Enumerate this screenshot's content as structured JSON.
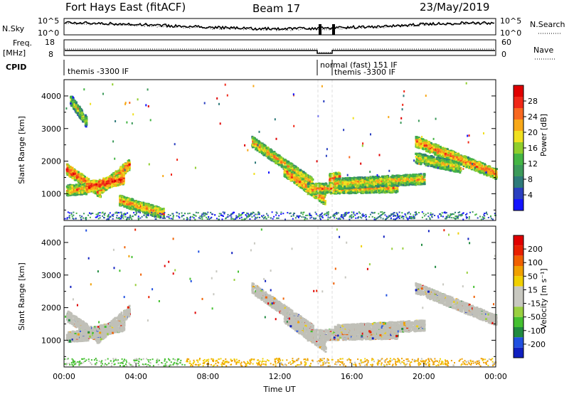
{
  "header": {
    "site": "Fort Hays East (fitACF)",
    "beam": "Beam 17",
    "date": "23/May/2019"
  },
  "strips": {
    "nsky_label": "N.Sky",
    "nsky_ticks": [
      "10^5",
      "10^0"
    ],
    "nsearch_label": "N.Search",
    "nsearch_ticks": [
      "10^5",
      "10^0"
    ],
    "freq_label_1": "Freq.",
    "freq_label_2": "[MHz]",
    "freq_ticks": [
      "18",
      "8"
    ],
    "nave_label": "Nave",
    "nave_ticks": [
      "60",
      "0"
    ],
    "cpid_label": "CPID",
    "cpid_segments": [
      "themis -3300 IF",
      "normal (fast) 151 IF",
      "themis -3300 IF"
    ]
  },
  "chart_data": [
    {
      "type": "heatmap",
      "panel": "power",
      "ylabel": "Slant Range [km]",
      "ylim": [
        180,
        4500
      ],
      "yticks": [
        "4000",
        "3000",
        "2000",
        "1000"
      ],
      "xlim_hours": [
        0,
        24
      ],
      "colorbar_label": "Power [dB]",
      "colorbar_ticks": [
        "28",
        "24",
        "20",
        "16",
        "12",
        "8",
        "4"
      ],
      "colors": [
        "#1414ff",
        "#2a3fc0",
        "#2e7a7a",
        "#3c9a5a",
        "#44b544",
        "#8fce2c",
        "#f0e020",
        "#f8a818",
        "#f86820",
        "#f02818",
        "#e00000"
      ],
      "features": [
        {
          "t0": 0.1,
          "t1": 2.0,
          "r0": 1750,
          "r1": 1050,
          "intensity": 0.85
        },
        {
          "t0": 1.8,
          "t1": 3.6,
          "r0": 1050,
          "r1": 1900,
          "intensity": 0.8
        },
        {
          "t0": 0.1,
          "t1": 1.3,
          "r0": 1100,
          "r1": 1150,
          "intensity": 0.6
        },
        {
          "t0": 1.2,
          "t1": 3.3,
          "r0": 1200,
          "r1": 1450,
          "intensity": 0.9
        },
        {
          "t0": 3.0,
          "t1": 5.5,
          "r0": 800,
          "r1": 380,
          "intensity": 0.6
        },
        {
          "t0": 10.4,
          "t1": 13.8,
          "r0": 2600,
          "r1": 1300,
          "intensity": 0.55
        },
        {
          "t0": 12.2,
          "t1": 14.5,
          "r0": 1700,
          "r1": 800,
          "intensity": 0.7
        },
        {
          "t0": 14.7,
          "t1": 15.3,
          "r0": 1450,
          "r1": 1500,
          "intensity": 0.75
        },
        {
          "t0": 13.5,
          "t1": 18.5,
          "r0": 1150,
          "r1": 1200,
          "intensity": 0.6
        },
        {
          "t0": 15.0,
          "t1": 20.0,
          "r0": 1300,
          "r1": 1450,
          "intensity": 0.5
        },
        {
          "t0": 19.5,
          "t1": 24.0,
          "r0": 2600,
          "r1": 1600,
          "intensity": 0.7
        },
        {
          "t0": 19.5,
          "t1": 22.0,
          "r0": 2100,
          "r1": 1800,
          "intensity": 0.45
        },
        {
          "t0": 0.3,
          "t1": 1.2,
          "r0": 3900,
          "r1": 3200,
          "intensity": 0.3
        }
      ]
    },
    {
      "type": "heatmap",
      "panel": "velocity",
      "ylabel": "Slant Range [km]",
      "ylim": [
        180,
        4500
      ],
      "yticks": [
        "4000",
        "3000",
        "2000",
        "1000"
      ],
      "xlabel": "Time UT",
      "xticks": [
        "00:00",
        "04:00",
        "08:00",
        "12:00",
        "16:00",
        "20:00",
        "00:00"
      ],
      "xlim_hours": [
        0,
        24
      ],
      "colorbar_label": "Velocity [m s⁻¹]",
      "colorbar_ticks": [
        "200",
        "100",
        "50",
        "15",
        "-15",
        "-50",
        "-100",
        "-200"
      ],
      "colors": [
        "#1020c0",
        "#2050e0",
        "#208a40",
        "#44c030",
        "#9ad040",
        "#c8c8c0",
        "#c8c8c0",
        "#f0d000",
        "#f0a000",
        "#f06000",
        "#e82000",
        "#e00000"
      ],
      "ground_scatter_color": "#c0c0b8",
      "features": [
        {
          "t0": 0.1,
          "t1": 2.0,
          "r0": 1750,
          "r1": 1050
        },
        {
          "t0": 1.8,
          "t1": 3.6,
          "r0": 1050,
          "r1": 1900
        },
        {
          "t0": 0.1,
          "t1": 1.3,
          "r0": 1100,
          "r1": 1150
        },
        {
          "t0": 1.2,
          "t1": 3.3,
          "r0": 1200,
          "r1": 1450
        },
        {
          "t0": 10.4,
          "t1": 13.8,
          "r0": 2600,
          "r1": 1300
        },
        {
          "t0": 12.2,
          "t1": 14.5,
          "r0": 1700,
          "r1": 800
        },
        {
          "t0": 13.5,
          "t1": 18.5,
          "r0": 1150,
          "r1": 1200
        },
        {
          "t0": 15.0,
          "t1": 20.0,
          "r0": 1300,
          "r1": 1450
        },
        {
          "t0": 19.5,
          "t1": 24.0,
          "r0": 2600,
          "r1": 1600
        }
      ]
    }
  ]
}
